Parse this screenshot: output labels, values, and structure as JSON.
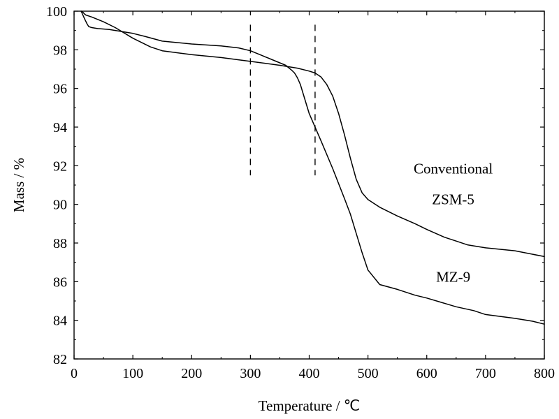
{
  "chart_data": {
    "type": "line",
    "title": "",
    "xlabel": "Temperature / ℃",
    "ylabel": "Mass / %",
    "xlim": [
      0,
      800
    ],
    "ylim": [
      82,
      100
    ],
    "xticks": [
      0,
      100,
      200,
      300,
      400,
      500,
      600,
      700,
      800
    ],
    "yticks": [
      82,
      84,
      86,
      88,
      90,
      92,
      94,
      96,
      98,
      100
    ],
    "grid": false,
    "legend": "none",
    "series": [
      {
        "name": "Conventional ZSM-5",
        "color": "#000000",
        "x": [
          12,
          15,
          18,
          22,
          25,
          30,
          40,
          60,
          80,
          100,
          120,
          150,
          200,
          250,
          280,
          300,
          320,
          340,
          360,
          370,
          375,
          380,
          385,
          390,
          400,
          420,
          440,
          460,
          470,
          480,
          490,
          500,
          520,
          550,
          580,
          600,
          650,
          680,
          700,
          750,
          780,
          800
        ],
        "y": [
          100.0,
          99.8,
          99.6,
          99.35,
          99.2,
          99.15,
          99.1,
          99.05,
          98.95,
          98.85,
          98.7,
          98.45,
          98.3,
          98.2,
          98.1,
          97.95,
          97.7,
          97.45,
          97.2,
          96.95,
          96.8,
          96.55,
          96.2,
          95.7,
          94.7,
          93.3,
          91.85,
          90.3,
          89.5,
          88.5,
          87.5,
          86.6,
          85.85,
          85.6,
          85.3,
          85.15,
          84.7,
          84.5,
          84.3,
          84.1,
          83.95,
          83.8
        ]
      },
      {
        "name": "MZ-9",
        "color": "#000000",
        "x": [
          12,
          15,
          18,
          20,
          30,
          50,
          70,
          100,
          130,
          150,
          200,
          250,
          300,
          350,
          380,
          400,
          410,
          420,
          430,
          440,
          450,
          460,
          470,
          480,
          490,
          500,
          520,
          550,
          580,
          600,
          630,
          650,
          670,
          700,
          750,
          800
        ],
        "y": [
          100.0,
          99.95,
          99.85,
          99.8,
          99.7,
          99.45,
          99.15,
          98.6,
          98.15,
          97.95,
          97.75,
          97.6,
          97.4,
          97.2,
          97.05,
          96.9,
          96.8,
          96.6,
          96.2,
          95.6,
          94.7,
          93.6,
          92.4,
          91.3,
          90.6,
          90.25,
          89.85,
          89.4,
          89.0,
          88.7,
          88.3,
          88.1,
          87.9,
          87.75,
          87.6,
          87.3
        ]
      }
    ],
    "vlines": [
      300,
      410
    ],
    "vline_range": [
      91.5,
      99.3
    ],
    "annotations": [
      {
        "text": "Conventional",
        "x": 645,
        "y": 91.6
      },
      {
        "text": "ZSM-5",
        "x": 645,
        "y": 90.0
      },
      {
        "text": "MZ-9",
        "x": 645,
        "y": 86.0
      }
    ]
  }
}
